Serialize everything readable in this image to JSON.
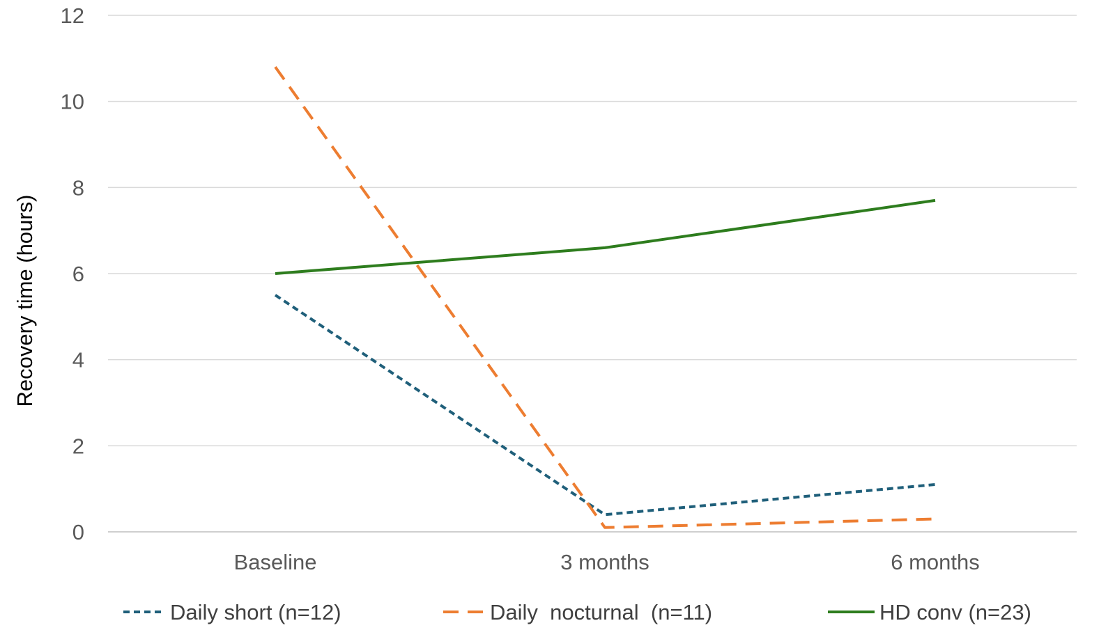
{
  "chart_data": {
    "type": "line",
    "title": "",
    "xlabel": "",
    "ylabel": "Recovery time (hours)",
    "categories": [
      "Baseline",
      "3 months",
      "6 months"
    ],
    "ylim": [
      0,
      12
    ],
    "yticks": [
      0,
      2,
      4,
      6,
      8,
      10,
      12
    ],
    "grid": true,
    "legend_position": "bottom",
    "series": [
      {
        "name": "Daily short (n=12)",
        "values": [
          5.5,
          0.4,
          1.1
        ],
        "color": "#1f5f7a",
        "style": "short-dash"
      },
      {
        "name": "Daily  nocturnal  (n=11)",
        "values": [
          10.8,
          0.1,
          0.3
        ],
        "color": "#ed7d31",
        "style": "long-dash"
      },
      {
        "name": "HD conv (n=23)",
        "values": [
          6.0,
          6.6,
          7.7
        ],
        "color": "#2e7d1e",
        "style": "solid"
      }
    ]
  }
}
